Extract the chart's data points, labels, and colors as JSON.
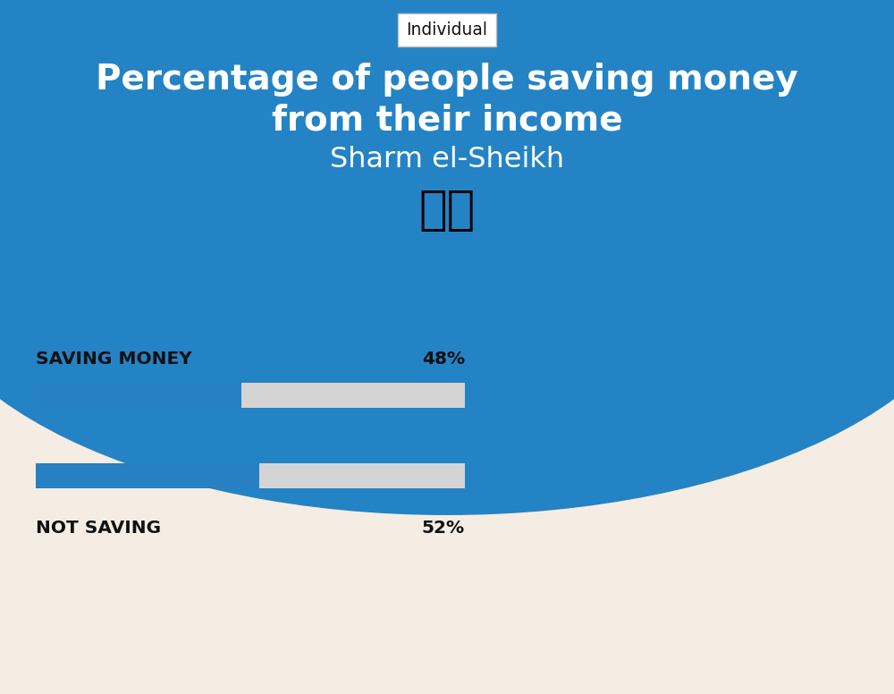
{
  "title_line1": "Percentage of people saving money",
  "title_line2": "from their income",
  "subtitle": "Sharm el-Sheikh",
  "tag": "Individual",
  "categories": [
    "SAVING MONEY",
    "NOT SAVING"
  ],
  "values": [
    48,
    52
  ],
  "bar_color": "#2680C2",
  "bar_bg_color": "#D4D4D4",
  "background_top": "#2483C5",
  "background_bottom": "#F5EDE3",
  "title_color": "#FFFFFF",
  "subtitle_color": "#FFFFFF",
  "label_color": "#111111",
  "value_color": "#111111",
  "tag_color": "#111111",
  "tag_bg": "#FFFFFF",
  "fig_width": 10.0,
  "fig_height": 7.76,
  "dpi": 100
}
